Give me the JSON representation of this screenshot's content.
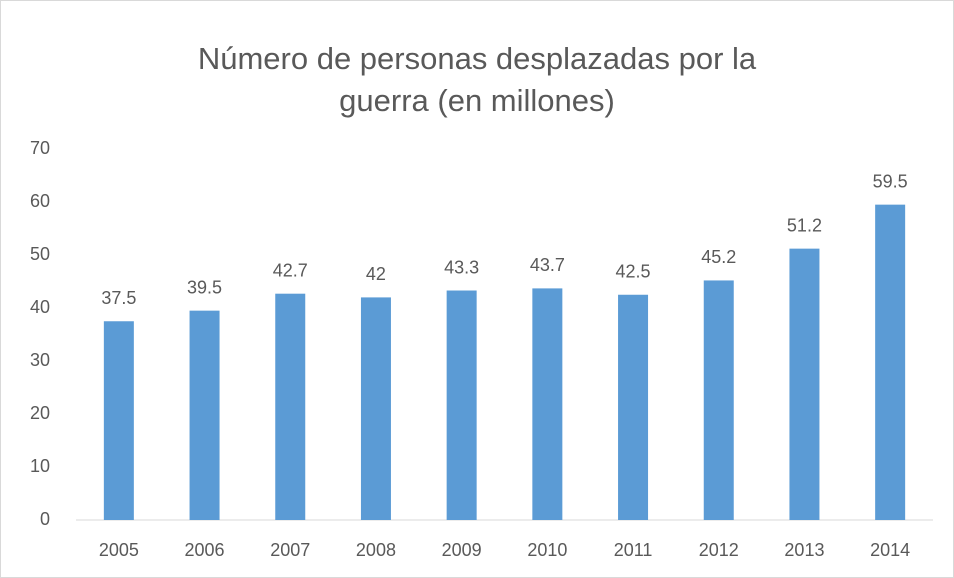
{
  "chart_data": {
    "type": "bar",
    "title": "Número de personas desplazadas por la guerra (en millones)",
    "categories": [
      "2005",
      "2006",
      "2007",
      "2008",
      "2009",
      "2010",
      "2011",
      "2012",
      "2013",
      "2014"
    ],
    "values": [
      37.5,
      39.5,
      42.7,
      42,
      43.3,
      43.7,
      42.5,
      45.2,
      51.2,
      59.5
    ],
    "color": "#5b9bd5",
    "ylim": [
      0,
      70
    ],
    "yticks": [
      0,
      10,
      20,
      30,
      40,
      50,
      60,
      70
    ],
    "grid": false
  }
}
